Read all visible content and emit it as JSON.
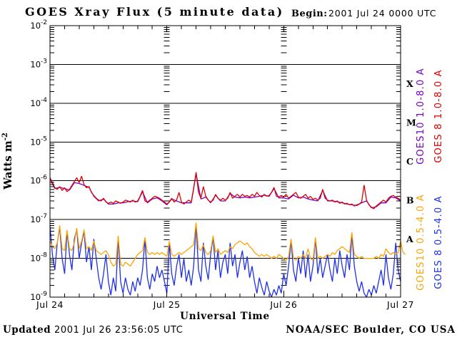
{
  "header": {
    "title": "GOES Xray Flux (5 minute data)",
    "begin_label": "Begin:",
    "begin_value": "2001 Jul 24 0000 UTC"
  },
  "footer": {
    "updated_label": "Updated",
    "updated_value": "2001 Jul 26 23:56:05 UTC",
    "credit": "NOAA/SEC Boulder, CO USA"
  },
  "colors": {
    "goes10_long": "#7700c8",
    "goes8_long": "#dd0000",
    "goes10_short": "#ffa300",
    "goes8_short": "#2030e8",
    "axis": "#000000",
    "background": "#ffffff"
  },
  "chart_data": {
    "type": "line",
    "title": "GOES Xray Flux (5 minute data)",
    "xlabel": "Universal Time",
    "ylabel_base": "Watts m",
    "ylabel_exponent": "-2",
    "x_tick_labels": [
      "Jul 24",
      "Jul 25",
      "Jul 26",
      "Jul 27"
    ],
    "x_tick_hours": [
      0,
      24,
      48,
      72
    ],
    "x_range_hours": [
      0,
      72
    ],
    "x_minor_tick_hours": 3,
    "y_scale": "log10",
    "y_decade_exponents": [
      -2,
      -3,
      -4,
      -5,
      -6,
      -7,
      -8,
      -9
    ],
    "ylim_log": [
      -9,
      -2
    ],
    "grid": "decade horizontal lines; dashed log-tick columns at day boundaries",
    "legend_position": "right-rotated",
    "flare_class_letters": [
      "X",
      "M",
      "C",
      "B",
      "A"
    ],
    "series": [
      {
        "name": "GOES10 1.0-8.0 A",
        "satellite": "GOES10",
        "channel": "long",
        "color": "#7700c8",
        "step_hours": 1,
        "log_flux": [
          -5.95,
          -6.2,
          -6.17,
          -6.2,
          -6.24,
          -6.05,
          -6.07,
          -6.12,
          -6.17,
          -6.4,
          -6.52,
          -6.47,
          -6.6,
          -6.6,
          -6.57,
          -6.57,
          -6.54,
          -6.52,
          -6.54,
          -6.28,
          -6.57,
          -6.47,
          -6.44,
          -6.52,
          -6.62,
          -6.47,
          -6.52,
          -6.57,
          -6.57,
          -6.57,
          -5.82,
          -6.47,
          -6.42,
          -6.57,
          -6.37,
          -6.52,
          -6.52,
          -6.33,
          -6.42,
          -6.44,
          -6.42,
          -6.44,
          -6.42,
          -6.4,
          -6.37,
          -6.4,
          -6.2,
          -6.44,
          -6.44,
          -6.47,
          -6.37,
          -6.44,
          -6.42,
          -6.47,
          -6.5,
          -6.52,
          -6.25,
          -6.52,
          -6.52,
          -6.54,
          -6.57,
          -6.6,
          -6.62,
          -6.64,
          -6.57,
          -6.52,
          -6.7,
          -6.67,
          -6.57,
          -6.57,
          -6.42,
          -6.44,
          -6.52
        ]
      },
      {
        "name": "GOES 8 1.0-8.0 A",
        "satellite": "GOES 8",
        "channel": "long",
        "color": "#dd0000",
        "step_hours": 0.5,
        "log_flux": [
          -5.92,
          -6.05,
          -6.18,
          -6.22,
          -6.15,
          -6.25,
          -6.18,
          -6.28,
          -6.22,
          -6.12,
          -6.02,
          -5.92,
          -6.05,
          -5.88,
          -6.1,
          -6.18,
          -6.15,
          -6.3,
          -6.38,
          -6.45,
          -6.5,
          -6.52,
          -6.45,
          -6.55,
          -6.58,
          -6.55,
          -6.58,
          -6.52,
          -6.55,
          -6.58,
          -6.55,
          -6.5,
          -6.52,
          -6.55,
          -6.5,
          -6.55,
          -6.52,
          -6.4,
          -6.25,
          -6.52,
          -6.55,
          -6.5,
          -6.45,
          -6.4,
          -6.42,
          -6.45,
          -6.5,
          -6.55,
          -6.6,
          -6.55,
          -6.45,
          -6.55,
          -6.5,
          -6.3,
          -6.55,
          -6.6,
          -6.55,
          -6.5,
          -6.55,
          -6.2,
          -5.78,
          -6.3,
          -6.45,
          -6.15,
          -6.4,
          -6.5,
          -6.55,
          -6.5,
          -6.35,
          -6.45,
          -6.5,
          -6.45,
          -6.5,
          -6.45,
          -6.3,
          -6.45,
          -6.4,
          -6.35,
          -6.42,
          -6.35,
          -6.4,
          -6.38,
          -6.42,
          -6.35,
          -6.4,
          -6.3,
          -6.38,
          -6.42,
          -6.35,
          -6.4,
          -6.38,
          -6.3,
          -6.17,
          -6.4,
          -6.42,
          -6.38,
          -6.42,
          -6.35,
          -6.45,
          -6.4,
          -6.35,
          -6.3,
          -6.42,
          -6.45,
          -6.4,
          -6.35,
          -6.45,
          -6.4,
          -6.48,
          -6.45,
          -6.5,
          -6.45,
          -6.22,
          -6.45,
          -6.5,
          -6.52,
          -6.5,
          -6.55,
          -6.52,
          -6.58,
          -6.55,
          -6.6,
          -6.58,
          -6.62,
          -6.6,
          -6.65,
          -6.62,
          -6.6,
          -6.55,
          -6.11,
          -6.5,
          -6.62,
          -6.68,
          -6.72,
          -6.65,
          -6.6,
          -6.55,
          -6.5,
          -6.55,
          -6.45,
          -6.4,
          -6.38,
          -6.42,
          -6.45,
          -6.5
        ]
      },
      {
        "name": "GOES 8 0.5-4.0 A",
        "satellite": "GOES 8",
        "channel": "short",
        "color": "#2030e8",
        "step_hours": 0.5,
        "log_flux": [
          -7.15,
          -7.9,
          -8.3,
          -7.6,
          -7.2,
          -8.0,
          -8.4,
          -7.3,
          -7.9,
          -8.3,
          -7.5,
          -7.25,
          -8.0,
          -7.6,
          -7.3,
          -8.1,
          -7.7,
          -8.3,
          -7.5,
          -8.0,
          -8.5,
          -8.8,
          -8.4,
          -7.9,
          -8.6,
          -8.95,
          -8.5,
          -8.85,
          -7.45,
          -8.6,
          -8.9,
          -8.5,
          -8.8,
          -8.95,
          -8.6,
          -8.85,
          -8.5,
          -8.7,
          -8.3,
          -7.5,
          -8.5,
          -8.8,
          -8.4,
          -8.6,
          -8.2,
          -8.5,
          -8.3,
          -8.6,
          -8.9,
          -7.6,
          -8.4,
          -8.7,
          -8.2,
          -7.9,
          -8.5,
          -8.0,
          -8.6,
          -8.3,
          -8.7,
          -8.2,
          -7.12,
          -8.3,
          -8.6,
          -7.6,
          -8.2,
          -8.55,
          -7.9,
          -7.45,
          -8.3,
          -7.8,
          -8.5,
          -8.1,
          -7.9,
          -8.4,
          -7.6,
          -8.2,
          -7.9,
          -8.5,
          -8.1,
          -7.8,
          -8.3,
          -7.95,
          -8.5,
          -8.2,
          -8.6,
          -8.9,
          -8.5,
          -8.75,
          -8.95,
          -8.6,
          -8.85,
          -9.0,
          -8.8,
          -8.95,
          -8.7,
          -8.9,
          -8.4,
          -8.7,
          -8.2,
          -7.55,
          -8.3,
          -8.6,
          -8.0,
          -8.4,
          -7.8,
          -8.5,
          -7.9,
          -8.6,
          -8.2,
          -7.5,
          -8.4,
          -8.0,
          -8.5,
          -8.2,
          -7.9,
          -8.3,
          -8.6,
          -8.0,
          -8.4,
          -7.8,
          -8.2,
          -8.5,
          -7.9,
          -8.3,
          -7.38,
          -8.2,
          -8.6,
          -8.85,
          -8.6,
          -8.9,
          -9.0,
          -8.8,
          -8.95,
          -8.7,
          -8.9,
          -8.6,
          -8.3,
          -8.7,
          -7.9,
          -8.5,
          -8.8,
          -8.4,
          -7.6,
          -8.3,
          -8.6
        ]
      },
      {
        "name": "GOES10 0.5-4.0 A",
        "satellite": "GOES10",
        "channel": "short",
        "color": "#ffa300",
        "step_hours": 0.5,
        "log_flux": [
          -7.55,
          -7.7,
          -7.75,
          -7.6,
          -7.15,
          -7.75,
          -7.8,
          -7.27,
          -7.75,
          -7.8,
          -7.6,
          -7.22,
          -7.75,
          -7.55,
          -7.26,
          -7.75,
          -7.7,
          -7.8,
          -7.55,
          -7.8,
          -7.85,
          -7.9,
          -7.85,
          -7.8,
          -7.9,
          -8.1,
          -8.2,
          -8.15,
          -7.42,
          -8.15,
          -8.2,
          -8.1,
          -8.15,
          -8.2,
          -8.1,
          -8.0,
          -7.9,
          -7.85,
          -7.8,
          -7.46,
          -7.85,
          -7.9,
          -7.85,
          -7.9,
          -7.85,
          -7.9,
          -7.85,
          -7.9,
          -7.95,
          -7.56,
          -7.9,
          -7.95,
          -7.9,
          -7.85,
          -7.9,
          -7.85,
          -7.8,
          -7.75,
          -7.7,
          -7.65,
          -7.08,
          -7.75,
          -7.8,
          -7.65,
          -7.85,
          -7.9,
          -7.8,
          -7.42,
          -7.85,
          -7.75,
          -7.9,
          -7.85,
          -7.8,
          -7.85,
          -7.7,
          -7.75,
          -7.65,
          -7.6,
          -7.55,
          -7.6,
          -7.65,
          -7.6,
          -7.7,
          -7.75,
          -7.85,
          -7.9,
          -7.95,
          -7.9,
          -7.95,
          -7.9,
          -7.95,
          -8.0,
          -7.95,
          -8.0,
          -7.9,
          -7.95,
          -8.0,
          -8.05,
          -7.95,
          -7.5,
          -8.0,
          -8.05,
          -7.95,
          -8.0,
          -7.9,
          -8.0,
          -7.75,
          -8.0,
          -8.05,
          -7.46,
          -8.0,
          -7.95,
          -8.0,
          -7.95,
          -7.9,
          -7.95,
          -7.85,
          -7.9,
          -7.8,
          -7.75,
          -7.7,
          -7.75,
          -7.8,
          -7.85,
          -7.33,
          -7.9,
          -7.95,
          -8.0,
          -7.95,
          -8.0,
          -8.0,
          -8.0,
          -8.0,
          -8.0,
          -7.95,
          -8.0,
          -7.9,
          -7.95,
          -7.75,
          -7.85,
          -7.9,
          -7.85,
          -7.9,
          -7.85,
          -7.56,
          -7.85,
          -7.9
        ]
      }
    ]
  }
}
